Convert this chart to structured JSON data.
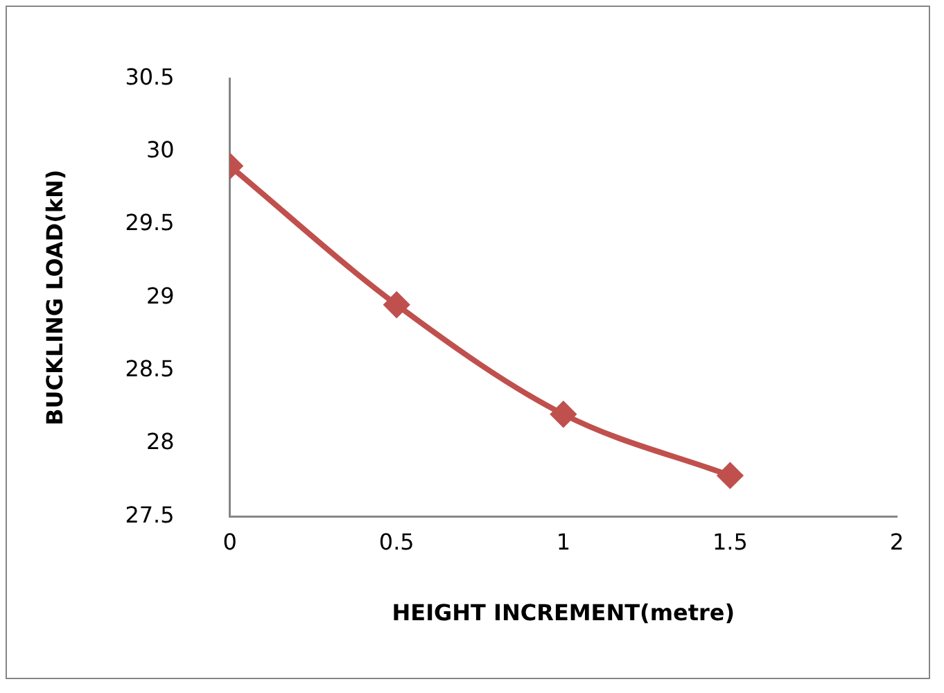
{
  "chart_data": {
    "type": "line",
    "xlabel": "HEIGHT INCREMENT(metre)",
    "ylabel": "BUCKLING LOAD(kN)",
    "x": [
      0,
      0.5,
      1,
      1.5
    ],
    "series": [
      {
        "color": "#c0504d",
        "values": [
          29.9,
          28.95,
          28.2,
          27.78
        ]
      }
    ],
    "xlim": [
      0,
      2
    ],
    "xticks": [
      0,
      0.5,
      1,
      1.5,
      2
    ],
    "ylim": [
      27.5,
      30.5
    ],
    "yticks": [
      27.5,
      28,
      28.5,
      29,
      29.5,
      30,
      30.5
    ],
    "grid": false,
    "legend": false,
    "marker": "diamond",
    "line_style": "solid"
  }
}
